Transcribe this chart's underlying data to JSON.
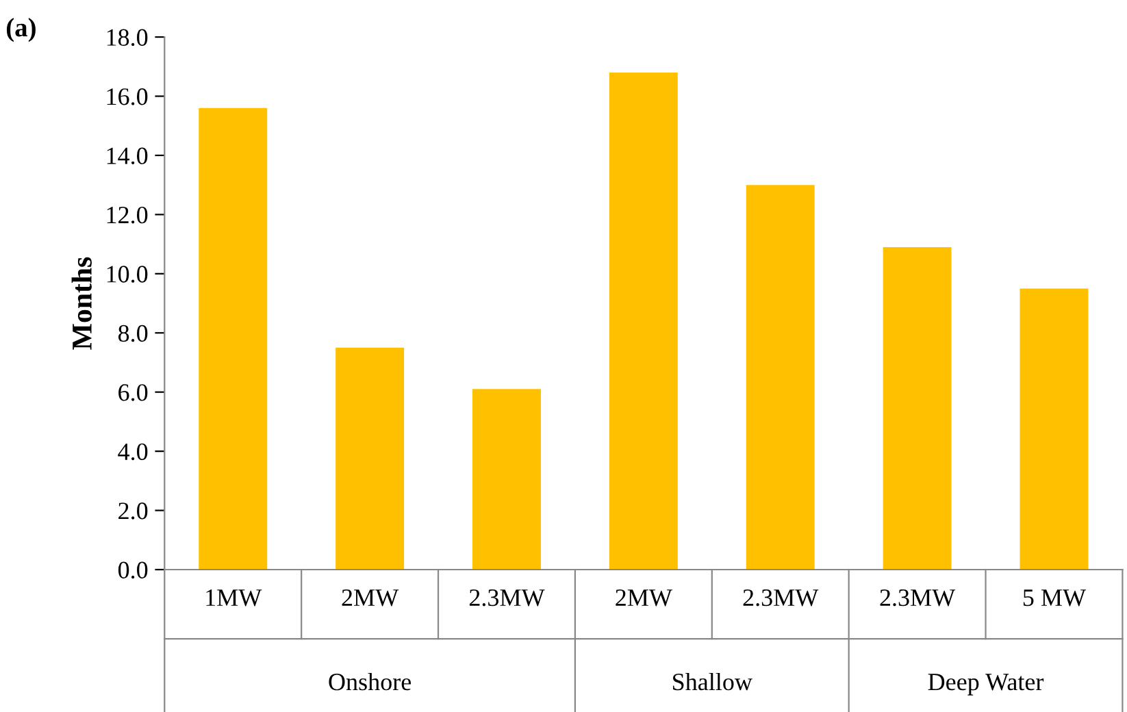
{
  "chart_data": {
    "type": "bar",
    "title": "(a)",
    "ylabel": "Months",
    "categories": [
      "1MW",
      "2MW",
      "2.3MW",
      "2MW",
      "2.3MW",
      "2.3MW",
      "5 MW"
    ],
    "values": [
      15.6,
      7.5,
      6.1,
      16.8,
      13.0,
      10.9,
      9.5
    ],
    "color": "#ffc000",
    "ylim": [
      0,
      18
    ],
    "yticks": [
      {
        "value": 0,
        "label": "0.0"
      },
      {
        "value": 2,
        "label": "2.0"
      },
      {
        "value": 4,
        "label": "4.0"
      },
      {
        "value": 6,
        "label": "6.0"
      },
      {
        "value": 8,
        "label": "8.0"
      },
      {
        "value": 10,
        "label": "10.0"
      },
      {
        "value": 12,
        "label": "12.0"
      },
      {
        "value": 14,
        "label": "14.0"
      },
      {
        "value": 16,
        "label": "16.0"
      },
      {
        "value": 18,
        "label": "18.0"
      }
    ],
    "annotations": [
      "Onshore",
      "Shallow",
      "Deep Water"
    ],
    "grid": false
  }
}
